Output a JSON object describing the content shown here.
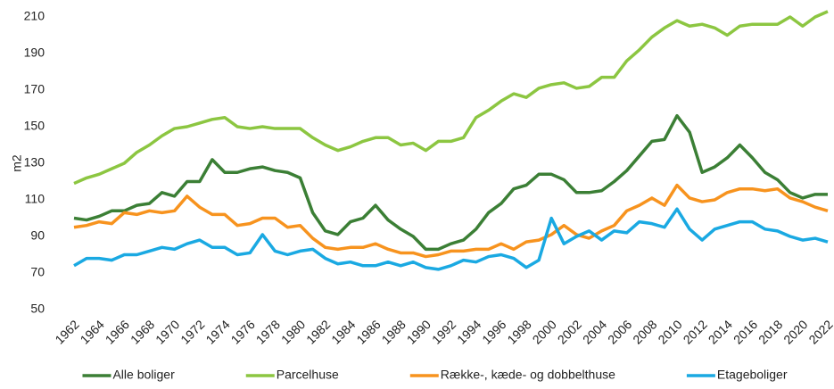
{
  "chart_data": {
    "type": "line",
    "y_label": "m2",
    "x": [
      1962,
      1963,
      1964,
      1965,
      1966,
      1967,
      1968,
      1969,
      1970,
      1971,
      1972,
      1973,
      1974,
      1975,
      1976,
      1977,
      1978,
      1979,
      1980,
      1981,
      1982,
      1983,
      1984,
      1985,
      1986,
      1987,
      1988,
      1989,
      1990,
      1991,
      1992,
      1993,
      1994,
      1995,
      1996,
      1997,
      1998,
      1999,
      2000,
      2001,
      2002,
      2003,
      2004,
      2005,
      2006,
      2007,
      2008,
      2009,
      2010,
      2011,
      2012,
      2013,
      2014,
      2015,
      2016,
      2017,
      2018,
      2019,
      2020,
      2021,
      2022
    ],
    "xlim": [
      1962,
      2022
    ],
    "xticks": [
      1962,
      1964,
      1966,
      1968,
      1970,
      1972,
      1974,
      1976,
      1978,
      1980,
      1982,
      1984,
      1986,
      1988,
      1990,
      1992,
      1994,
      1996,
      1998,
      2000,
      2002,
      2004,
      2006,
      2008,
      2010,
      2012,
      2014,
      2016,
      2018,
      2020,
      2022
    ],
    "ylim": [
      50,
      210
    ],
    "yticks": [
      50,
      70,
      90,
      110,
      130,
      150,
      170,
      190,
      210
    ],
    "grid": false,
    "legend": "bottom",
    "series": [
      {
        "name": "Alle boliger",
        "color": "#3b7f35",
        "values": [
          100,
          99,
          101,
          104,
          104,
          107,
          108,
          114,
          112,
          120,
          120,
          132,
          125,
          125,
          127,
          128,
          126,
          125,
          122,
          103,
          93,
          91,
          98,
          100,
          107,
          99,
          94,
          90,
          83,
          83,
          86,
          88,
          94,
          103,
          108,
          116,
          118,
          124,
          124,
          121,
          114,
          114,
          115,
          120,
          126,
          134,
          142,
          143,
          156,
          147,
          125,
          128,
          133,
          140,
          133,
          125,
          121,
          114,
          111,
          113,
          113
        ]
      },
      {
        "name": "Parcelhuse",
        "color": "#8cc641",
        "values": [
          119,
          122,
          124,
          127,
          130,
          136,
          140,
          145,
          149,
          150,
          152,
          154,
          155,
          150,
          149,
          150,
          149,
          149,
          149,
          144,
          140,
          137,
          139,
          142,
          144,
          144,
          140,
          141,
          137,
          142,
          142,
          144,
          155,
          159,
          164,
          168,
          166,
          171,
          173,
          174,
          171,
          172,
          177,
          177,
          186,
          192,
          199,
          204,
          208,
          205,
          206,
          204,
          200,
          205,
          206,
          206,
          206,
          210,
          205,
          210,
          213
        ]
      },
      {
        "name": "Række-, kæde- og dobbelthuse",
        "color": "#f7931e",
        "values": [
          95,
          96,
          98,
          97,
          103,
          102,
          104,
          103,
          104,
          112,
          106,
          102,
          102,
          96,
          97,
          100,
          100,
          95,
          96,
          89,
          84,
          83,
          84,
          84,
          86,
          83,
          81,
          81,
          79,
          80,
          82,
          82,
          83,
          83,
          86,
          83,
          87,
          88,
          91,
          96,
          91,
          89,
          93,
          96,
          104,
          107,
          111,
          107,
          118,
          111,
          109,
          110,
          114,
          116,
          116,
          115,
          116,
          111,
          109,
          106,
          104
        ]
      },
      {
        "name": "Etageboliger",
        "color": "#1aa9e2",
        "values": [
          74,
          78,
          78,
          77,
          80,
          80,
          82,
          84,
          83,
          86,
          88,
          84,
          84,
          80,
          81,
          91,
          82,
          80,
          82,
          83,
          78,
          75,
          76,
          74,
          74,
          76,
          74,
          76,
          73,
          72,
          74,
          77,
          76,
          79,
          80,
          78,
          73,
          77,
          100,
          86,
          90,
          93,
          88,
          93,
          92,
          98,
          97,
          95,
          105,
          94,
          88,
          94,
          96,
          98,
          98,
          94,
          93,
          90,
          88,
          89,
          87
        ]
      }
    ]
  }
}
